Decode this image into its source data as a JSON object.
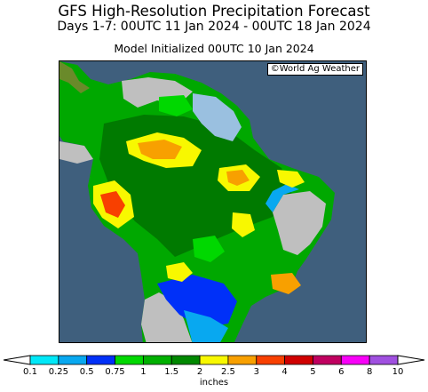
{
  "header": {
    "title": "GFS High-Resolution Precipitation Forecast",
    "subtitle": "Days 1-7: 00UTC 11 Jan 2024 - 00UTC 18 Jan 2024",
    "init": "Model Initialized 00UTC 10 Jan 2024"
  },
  "map": {
    "credit": "©World Ag Weather",
    "ocean_color": "#3f5f7d",
    "dry_land_color": "#bfbfbf"
  },
  "legend": {
    "tick_labels": [
      "0.1",
      "0.25",
      "0.5",
      "0.75",
      "1",
      "1.5",
      "2",
      "2.5",
      "3",
      "4",
      "5",
      "6",
      "8",
      "10"
    ],
    "colors": [
      "#00e8f8",
      "#08a8f0",
      "#0030f8",
      "#00d800",
      "#00b000",
      "#008800",
      "#f8f800",
      "#f8a000",
      "#f84000",
      "#d00000",
      "#c00060",
      "#f800f8",
      "#a050e0"
    ],
    "units": "inches"
  }
}
